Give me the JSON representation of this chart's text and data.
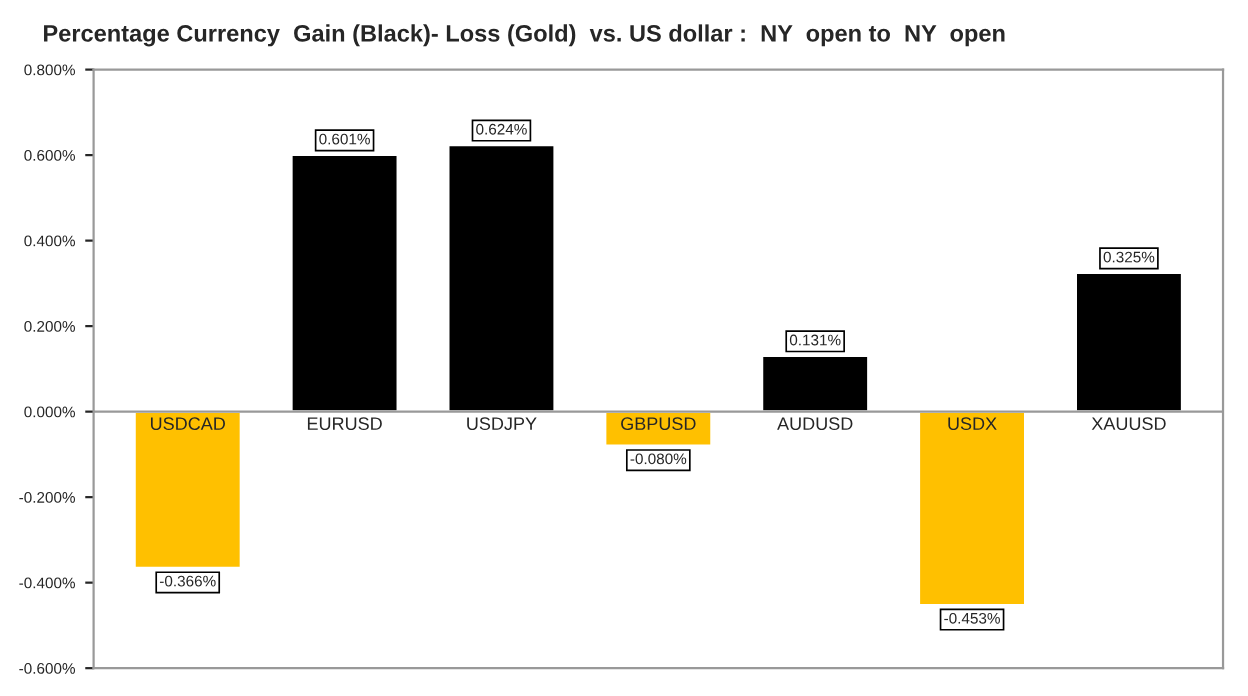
{
  "chart_data": {
    "type": "bar",
    "title": "Percentage Currency  Gain (Black)- Loss (Gold)  vs. US dollar :  NY  open to  NY  open",
    "categories": [
      "USDCAD",
      "EURUSD",
      "USDJPY",
      "GBPUSD",
      "AUDUSD",
      "USDX",
      "XAUUSD"
    ],
    "values": [
      -0.366,
      0.601,
      0.624,
      -0.08,
      0.131,
      -0.453,
      0.325
    ],
    "colors": [
      "#ffc000",
      "#000000",
      "#000000",
      "#ffc000",
      "#000000",
      "#ffc000",
      "#000000"
    ],
    "value_labels": [
      "-0.366%",
      "0.601%",
      "0.624%",
      "-0.080%",
      "0.131%",
      "-0.453%",
      "0.325%"
    ],
    "ylim": [
      -0.6,
      0.8
    ],
    "yticks": [
      {
        "value": -0.6,
        "label": "-0.600%"
      },
      {
        "value": -0.4,
        "label": "-0.400%"
      },
      {
        "value": -0.2,
        "label": "-0.200%"
      },
      {
        "value": 0,
        "label": "0.000%"
      },
      {
        "value": 0.2,
        "label": "0.200%"
      },
      {
        "value": 0.4,
        "label": "0.400%"
      },
      {
        "value": 0.6,
        "label": "0.600%"
      },
      {
        "value": 0.8,
        "label": "0.800%"
      }
    ],
    "grid": false,
    "legend": false
  }
}
